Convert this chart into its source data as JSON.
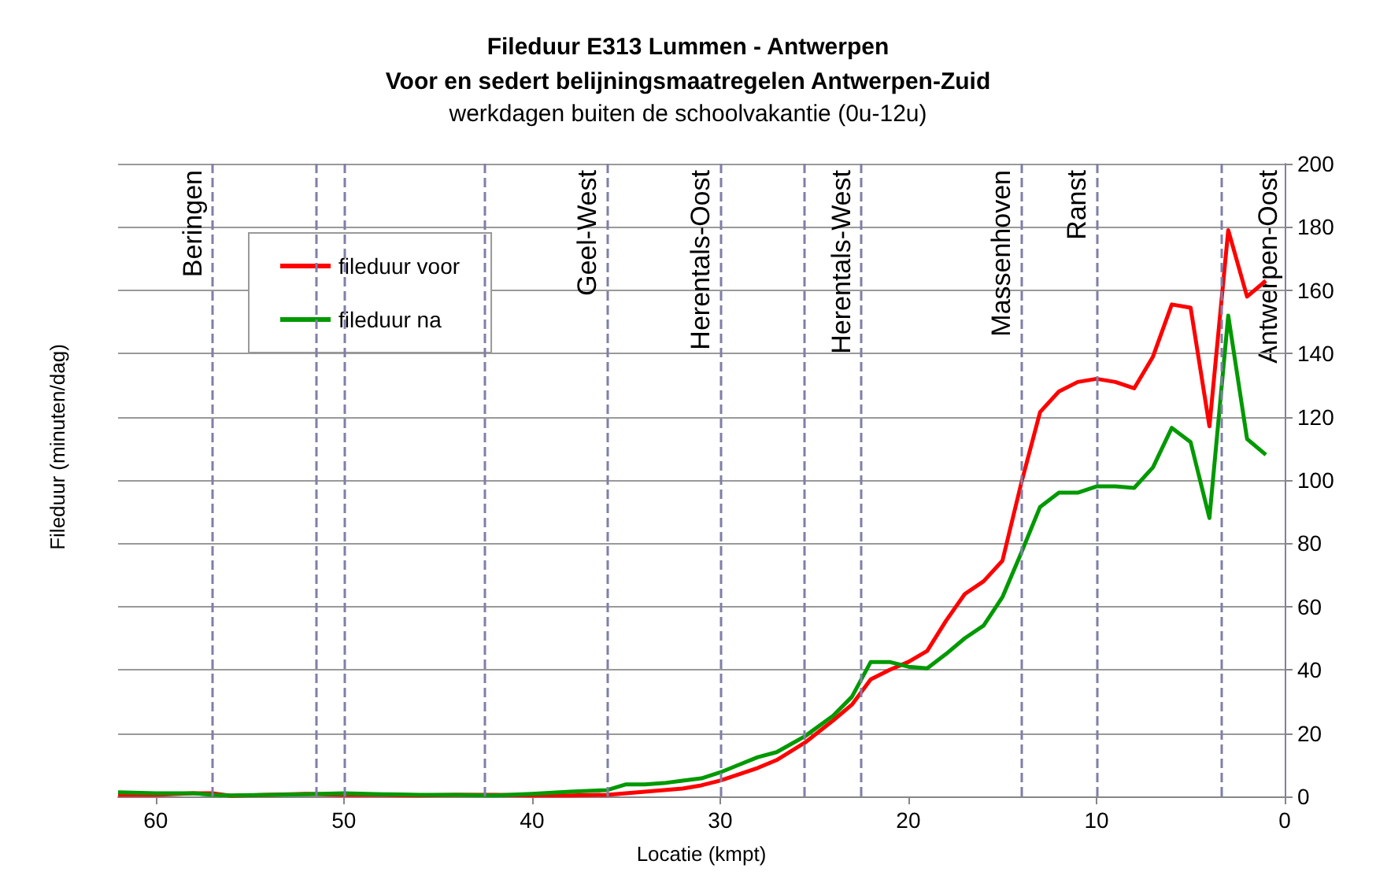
{
  "chart_data": {
    "type": "line",
    "title": "Fileduur E313 Lummen - Antwerpen\nVoor en sedert belijningsmaatregelen Antwerpen-Zuid",
    "subtitle": "werkdagen buiten de schoolvakantie (0u-12u)",
    "xlabel": "Locatie (kmpt)",
    "ylabel": "Fileduur (minuten/dag)",
    "x": [
      62,
      60,
      58,
      57,
      56,
      54,
      52,
      50,
      48,
      46,
      44,
      42,
      40,
      38,
      36,
      35,
      34,
      33,
      32,
      31,
      30,
      29,
      28,
      27,
      25.5,
      24,
      23,
      22,
      21,
      20,
      19,
      18,
      17,
      16,
      15,
      14,
      13,
      12,
      11,
      10,
      9,
      8,
      7,
      6,
      5,
      4,
      3,
      2,
      1
    ],
    "series": [
      {
        "name": "fileduur voor",
        "color": "#ff0000",
        "values": [
          0.5,
          0.5,
          1,
          1,
          0.2,
          0.5,
          0.8,
          0.5,
          0.5,
          0.3,
          0.5,
          0.5,
          0.3,
          0.3,
          0.5,
          1,
          1.5,
          2,
          2.5,
          3.5,
          5,
          7,
          9,
          11.5,
          17,
          24,
          29,
          37,
          40,
          42.5,
          46,
          55.5,
          64,
          68,
          74.5,
          99,
          121.5,
          128,
          131,
          132,
          131,
          129,
          139,
          155.5,
          154.5,
          117,
          179,
          158,
          163
        ]
      },
      {
        "name": "fileduur na",
        "color": "#009900",
        "values": [
          1.3,
          1,
          1,
          0.5,
          0.3,
          0.5,
          0.7,
          1,
          0.7,
          0.5,
          0.5,
          0.3,
          0.8,
          1.5,
          2,
          3.8,
          3.8,
          4.2,
          5,
          5.7,
          7.6,
          10,
          12.4,
          14,
          19,
          25.5,
          31.5,
          42.5,
          42.5,
          41,
          40.5,
          45,
          50,
          54,
          63,
          77,
          91.5,
          96,
          96,
          98,
          98,
          97.5,
          104,
          116.5,
          112,
          88,
          152,
          113,
          108
        ]
      }
    ],
    "xlim": [
      62,
      0
    ],
    "xticks": [
      60,
      50,
      40,
      30,
      20,
      10,
      0
    ],
    "ylim": [
      0,
      200
    ],
    "yticks": [
      0,
      20,
      40,
      60,
      80,
      100,
      120,
      140,
      160,
      180,
      200
    ],
    "grid": "y",
    "legend": "top left",
    "marker": "none",
    "line_style": "solid",
    "ref_lines": [
      {
        "axis": "x",
        "value": 57,
        "label": "Beringen",
        "color": "#7f7fa8",
        "line_style": "dashed"
      },
      {
        "axis": "x",
        "value": 51.5,
        "label": null,
        "color": "#7f7fa8",
        "line_style": "dashed"
      },
      {
        "axis": "x",
        "value": 50,
        "label": null,
        "color": "#7f7fa8",
        "line_style": "dashed"
      },
      {
        "axis": "x",
        "value": 42.5,
        "label": null,
        "color": "#7f7fa8",
        "line_style": "dashed"
      },
      {
        "axis": "x",
        "value": 36,
        "label": "Geel-West",
        "color": "#7f7fa8",
        "line_style": "dashed"
      },
      {
        "axis": "x",
        "value": 30,
        "label": "Herentals-Oost",
        "color": "#7f7fa8",
        "line_style": "dashed"
      },
      {
        "axis": "x",
        "value": 25.5,
        "label": null,
        "color": "#7f7fa8",
        "line_style": "dashed"
      },
      {
        "axis": "x",
        "value": 22.5,
        "label": "Herentals-West",
        "color": "#7f7fa8",
        "line_style": "dashed"
      },
      {
        "axis": "x",
        "value": 14,
        "label": "Massenhoven",
        "color": "#7f7fa8",
        "line_style": "dashed"
      },
      {
        "axis": "x",
        "value": 10,
        "label": "Ranst",
        "color": "#7f7fa8",
        "line_style": "dashed"
      },
      {
        "axis": "x",
        "value": 3.4,
        "label": null,
        "color": "#7f7fa8",
        "line_style": "dashed"
      }
    ],
    "annotations": [
      "Antwerpen-Oost"
    ]
  }
}
